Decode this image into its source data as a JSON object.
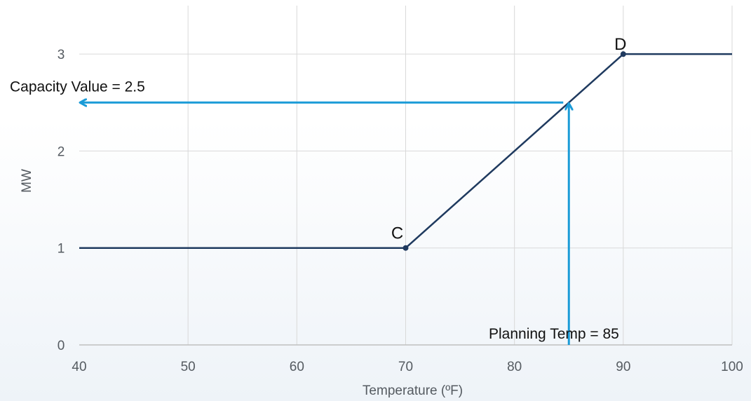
{
  "chart_data": {
    "type": "line",
    "title": "",
    "xlabel": "Temperature (ºF)",
    "ylabel": "MW",
    "xlim": [
      40,
      100
    ],
    "ylim": [
      0,
      3.5
    ],
    "xticks": [
      40,
      50,
      60,
      70,
      80,
      90,
      100
    ],
    "yticks": [
      0,
      1,
      2,
      3
    ],
    "grid": true,
    "legend": "none",
    "series": [
      {
        "x": [
          40,
          70,
          90,
          100
        ],
        "y": [
          1,
          1,
          3,
          3
        ],
        "color": "#1f3a5f"
      }
    ],
    "points": [
      {
        "label": "C",
        "x": 70,
        "y": 1
      },
      {
        "label": "D",
        "x": 90,
        "y": 3
      }
    ],
    "annotations": [
      {
        "text": "Capacity Value = 2.5",
        "y": 2.5
      },
      {
        "text": "Planning Temp = 85",
        "x": 85
      }
    ],
    "colors": {
      "line": "#1f3a5f",
      "arrow": "#1a9bd7",
      "grid": "#d9d9d9"
    }
  }
}
